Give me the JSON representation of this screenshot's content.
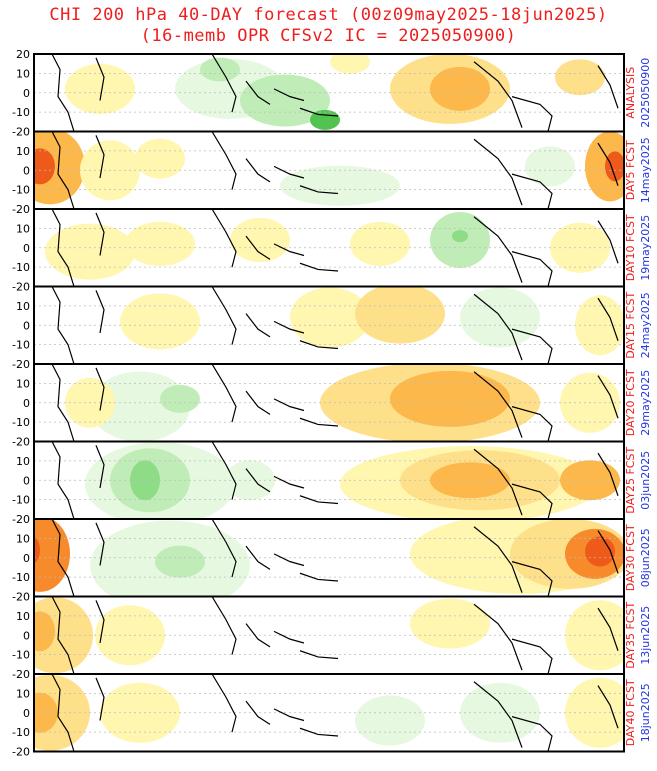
{
  "title": {
    "line1": "CHI 200 hPa 40-DAY forecast (00z09may2025-18jun2025)",
    "line2": "(16-memb OPR CFSv2 IC = 2025050900)"
  },
  "y_ticks": [
    "20",
    "10",
    "0",
    "-10",
    "-20"
  ],
  "panels": [
    {
      "label": "ANALYSIS",
      "date": "2025050900"
    },
    {
      "label": "DAY5 FCST",
      "date": "14may2025"
    },
    {
      "label": "DAY10 FCST",
      "date": "19may2025"
    },
    {
      "label": "DAY15 FCST",
      "date": "24may2025"
    },
    {
      "label": "DAY20 FCST",
      "date": "29may2025"
    },
    {
      "label": "DAY25 FCST",
      "date": "03jun2025"
    },
    {
      "label": "DAY30 FCST",
      "date": "08jun2025"
    },
    {
      "label": "DAY35 FCST",
      "date": "13jun2025"
    },
    {
      "label": "DAY40 FCST",
      "date": "18jun2025"
    }
  ],
  "colors": {
    "title": "#ee1e1e",
    "label_red": "#ee1e1e",
    "label_blue": "#2436e0",
    "pos1": "#fff6b0",
    "pos2": "#ffe08a",
    "pos3": "#fcb84a",
    "pos4": "#f78a2a",
    "pos5": "#ee5a1a",
    "neg1": "#e6f8e0",
    "neg2": "#c0ecb8",
    "neg3": "#8fdc86",
    "neg4": "#52c251"
  }
}
